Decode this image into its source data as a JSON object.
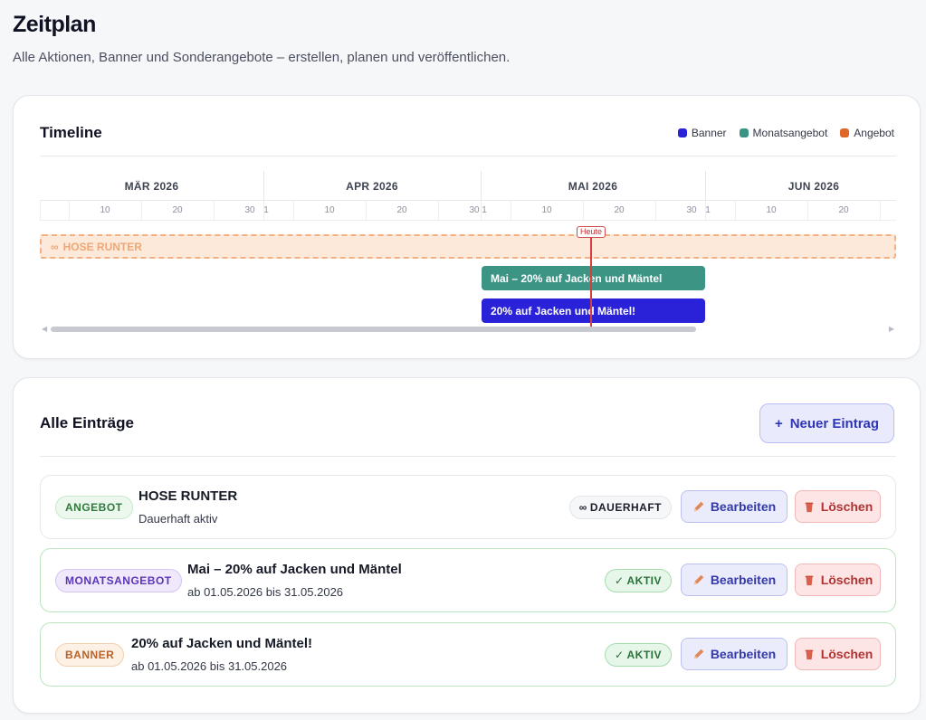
{
  "header": {
    "title": "Zeitplan",
    "subtitle": "Alle Aktionen, Banner und Sonderangebote – erstellen, planen und veröffentlichen."
  },
  "timeline": {
    "title": "Timeline",
    "legend": [
      {
        "label": "Banner",
        "color": "#2a22d8"
      },
      {
        "label": "Monatsangebot",
        "color": "#3c9484"
      },
      {
        "label": "Angebot",
        "color": "#e0672a"
      }
    ],
    "months": [
      "MÄR 2026",
      "APR 2026",
      "MAI 2026",
      "JUN 2026"
    ],
    "days": [
      "10",
      "20",
      "30",
      "1",
      "10",
      "20",
      "30",
      "1",
      "10",
      "20",
      "30",
      "1",
      "10",
      "20"
    ],
    "today_label": "Heute",
    "bars": {
      "offer": {
        "icon": "infinity-icon",
        "label": "HOSE RUNTER"
      },
      "monthly": {
        "label": "Mai – 20% auf Jacken und Mäntel"
      },
      "banner": {
        "label": "20% auf Jacken und Mäntel!"
      }
    }
  },
  "entries": {
    "title": "Alle Einträge",
    "new_button": {
      "icon": "+",
      "label": "Neuer Eintrag"
    },
    "items": [
      {
        "tag": "ANGEBOT",
        "title": "HOSE RUNTER",
        "subtitle": "Dauerhaft aktiv",
        "status": "DAUERHAFT",
        "status_icon": "∞",
        "edit_label": "Bearbeiten",
        "delete_label": "Löschen"
      },
      {
        "tag": "MONATSANGEBOT",
        "title": "Mai – 20% auf Jacken und Mäntel",
        "subtitle": "ab 01.05.2026 bis 31.05.2026",
        "status": "AKTIV",
        "status_icon": "✓",
        "edit_label": "Bearbeiten",
        "delete_label": "Löschen"
      },
      {
        "tag": "BANNER",
        "title": "20% auf Jacken und Mäntel!",
        "subtitle": "ab 01.05.2026 bis 31.05.2026",
        "status": "AKTIV",
        "status_icon": "✓",
        "edit_label": "Bearbeiten",
        "delete_label": "Löschen"
      }
    ]
  }
}
